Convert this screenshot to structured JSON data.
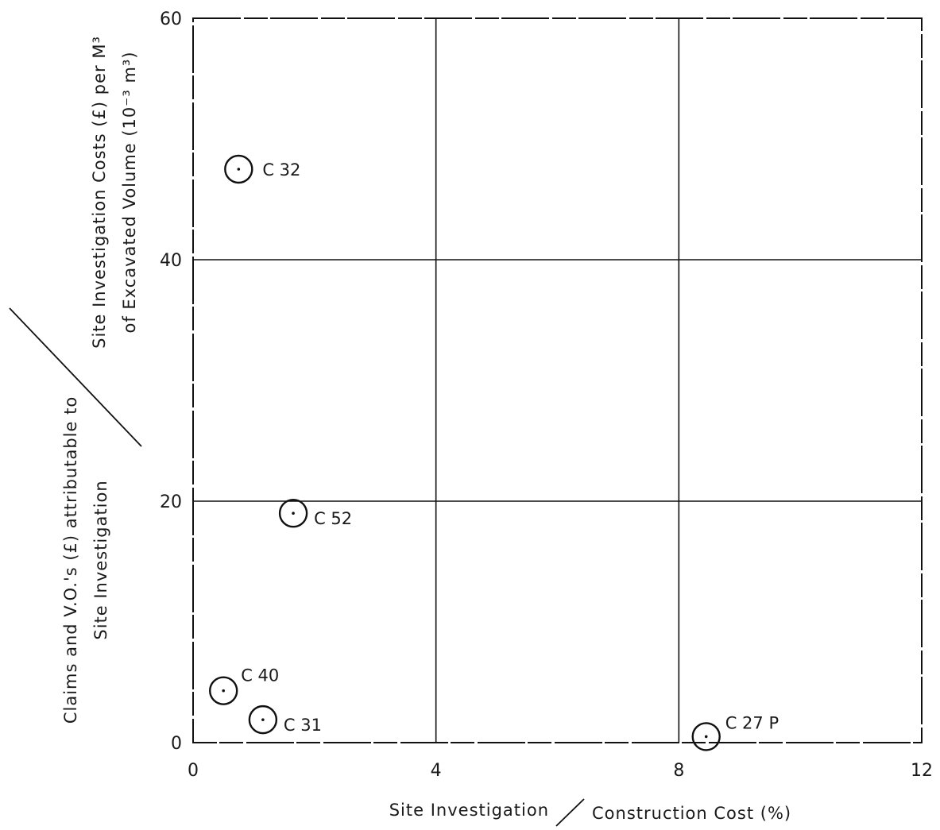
{
  "chart_data": {
    "type": "scatter",
    "title": "",
    "xlabel": {
      "numerator": "Site Investigation",
      "denominator": "Construction Cost (%)"
    },
    "ylabel": {
      "numerator_lines": [
        "Claims and V.O.'s (£) attributable to",
        "Site Investigation"
      ],
      "denominator_lines": [
        "Site Investigation Costs (£) per M³",
        "of Excavated Volume (10⁻³ m³)"
      ]
    },
    "xlim": [
      0,
      12
    ],
    "ylim": [
      0,
      60
    ],
    "xticks": [
      0,
      4,
      8,
      12
    ],
    "yticks": [
      0,
      20,
      40,
      60
    ],
    "xtick_labels": [
      "0",
      "4",
      "8",
      "12"
    ],
    "ytick_labels": [
      "0",
      "20",
      "40",
      "60"
    ],
    "grid": true,
    "marker": "circled-dot",
    "series": [
      {
        "points": [
          {
            "label": "C 32",
            "x": 0.75,
            "y": 47.5
          },
          {
            "label": "C 52",
            "x": 1.65,
            "y": 19.0
          },
          {
            "label": "C 40",
            "x": 0.5,
            "y": 4.3
          },
          {
            "label": "C 31",
            "x": 1.15,
            "y": 1.9
          },
          {
            "label": "C 27 P",
            "x": 8.45,
            "y": 0.5
          }
        ]
      }
    ]
  }
}
